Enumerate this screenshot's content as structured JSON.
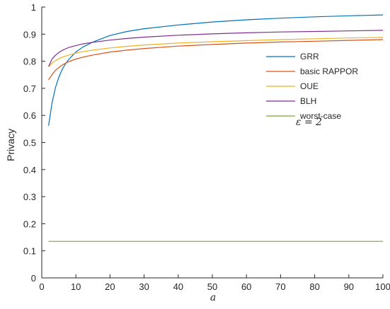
{
  "chart_data": {
    "type": "line",
    "xlabel": "a",
    "ylabel": "Privacy",
    "xlim": [
      0,
      100
    ],
    "ylim": [
      0,
      1
    ],
    "xticks": [
      0,
      10,
      20,
      30,
      40,
      50,
      60,
      70,
      80,
      90,
      100
    ],
    "yticks": [
      0,
      0.1,
      0.2,
      0.3,
      0.4,
      0.5,
      0.6,
      0.7,
      0.8,
      0.9,
      1
    ],
    "grid": false,
    "legend_position": "upper-right",
    "annotation": "ε = 2",
    "x": [
      2,
      3,
      4,
      5,
      6,
      7,
      8,
      10,
      12,
      15,
      20,
      25,
      30,
      40,
      50,
      60,
      70,
      80,
      90,
      100
    ],
    "series": [
      {
        "name": "GRR",
        "color": "#0072BD",
        "values": [
          0.562,
          0.646,
          0.702,
          0.741,
          0.77,
          0.791,
          0.808,
          0.834,
          0.852,
          0.871,
          0.895,
          0.91,
          0.92,
          0.934,
          0.945,
          0.953,
          0.959,
          0.964,
          0.968,
          0.971
        ]
      },
      {
        "name": "basic RAPPOR",
        "color": "#D95319",
        "values": [
          0.731,
          0.751,
          0.766,
          0.777,
          0.786,
          0.793,
          0.799,
          0.808,
          0.815,
          0.823,
          0.834,
          0.841,
          0.847,
          0.856,
          0.862,
          0.867,
          0.871,
          0.874,
          0.877,
          0.88
        ]
      },
      {
        "name": "OUE",
        "color": "#EDB120",
        "values": [
          0.78,
          0.793,
          0.802,
          0.809,
          0.815,
          0.819,
          0.823,
          0.83,
          0.835,
          0.841,
          0.849,
          0.855,
          0.86,
          0.867,
          0.872,
          0.876,
          0.88,
          0.883,
          0.886,
          0.888
        ]
      },
      {
        "name": "BLH",
        "color": "#7E2F8E",
        "values": [
          0.78,
          0.808,
          0.822,
          0.832,
          0.84,
          0.846,
          0.851,
          0.858,
          0.864,
          0.87,
          0.878,
          0.884,
          0.889,
          0.896,
          0.901,
          0.905,
          0.908,
          0.91,
          0.912,
          0.914
        ]
      },
      {
        "name": "worst-case",
        "color": "#77AC30",
        "values": [
          0.135,
          0.135,
          0.135,
          0.135,
          0.135,
          0.135,
          0.135,
          0.135,
          0.135,
          0.135,
          0.135,
          0.135,
          0.135,
          0.135,
          0.135,
          0.135,
          0.135,
          0.135,
          0.135,
          0.135
        ]
      }
    ]
  }
}
